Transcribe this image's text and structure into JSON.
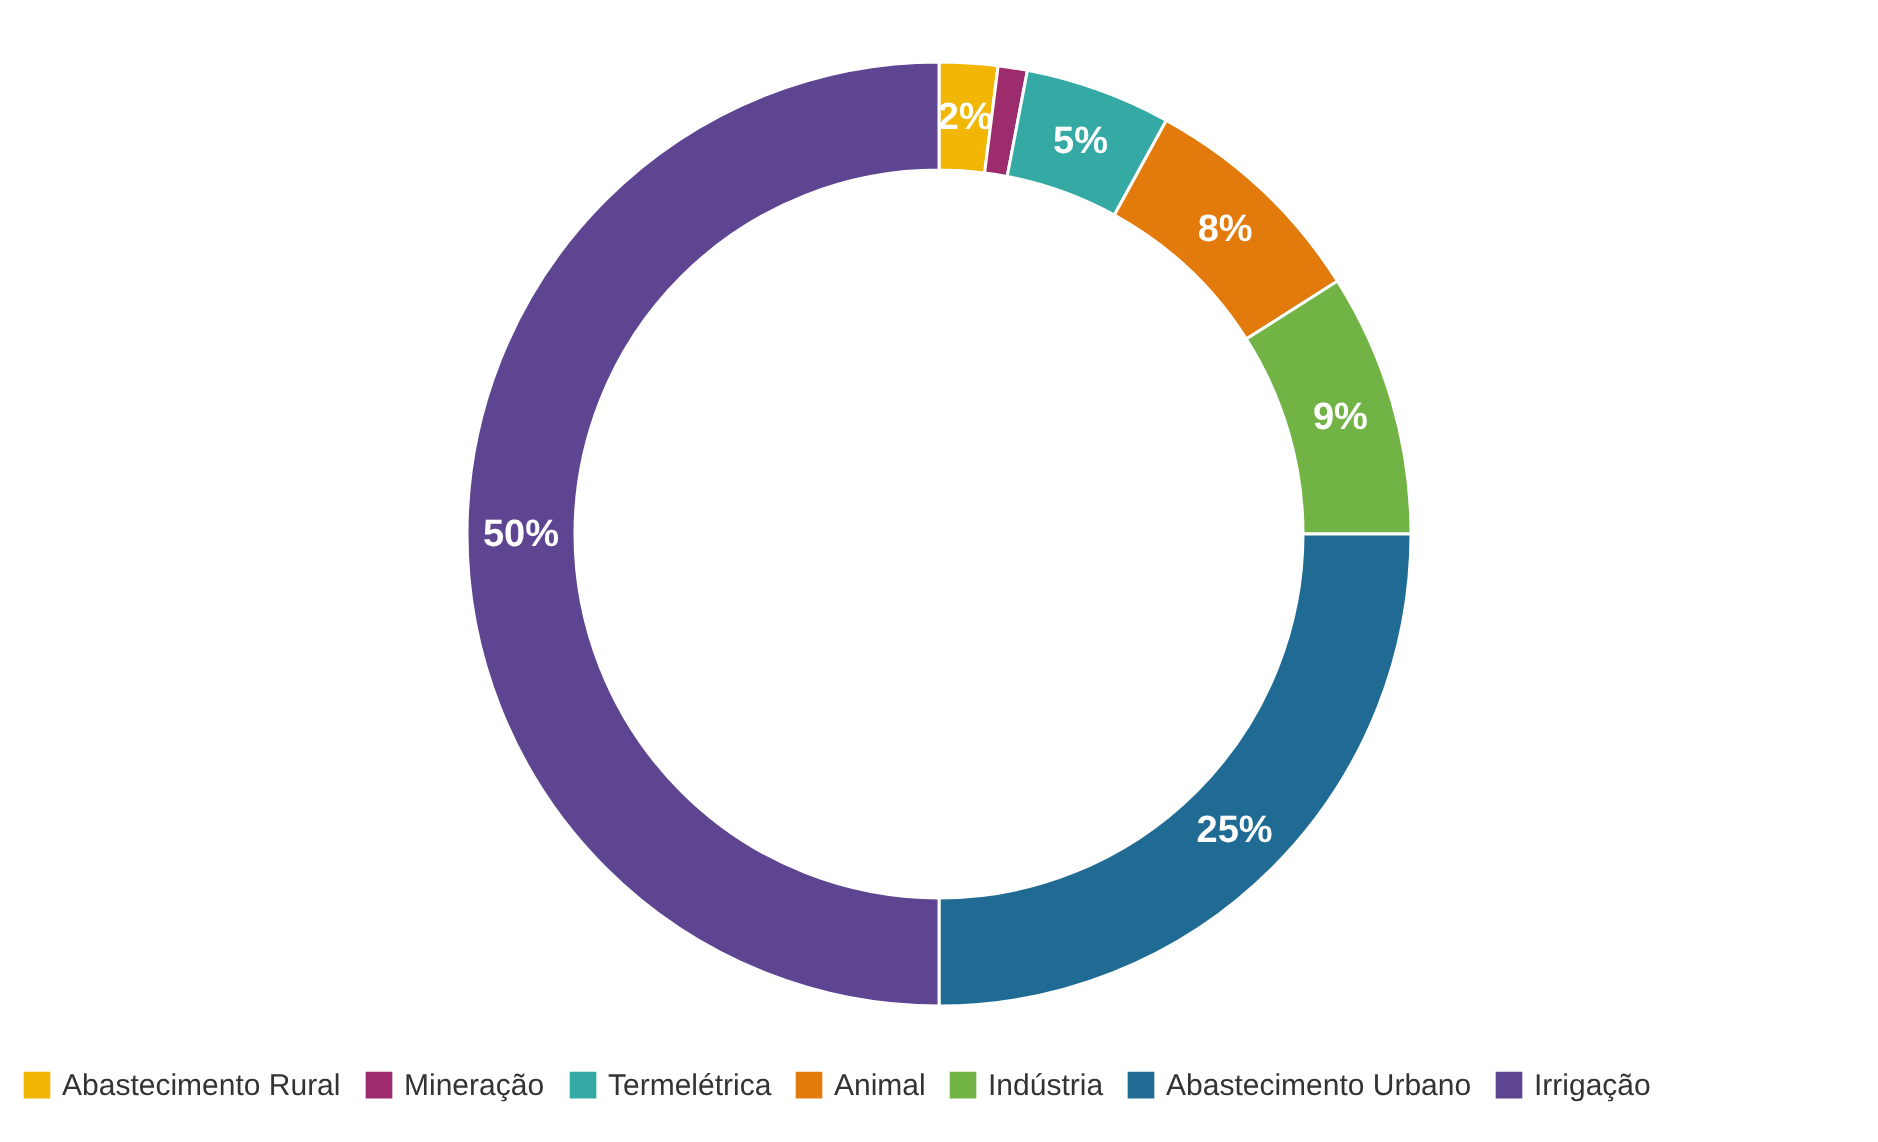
{
  "chart_data": {
    "type": "donut",
    "categories": [
      "Abastecimento Rural",
      "Mineração",
      "Termelétrica",
      "Animal",
      "Indústria",
      "Abastecimento Urbano",
      "Irrigação"
    ],
    "values": [
      2,
      1,
      5,
      8,
      9,
      25,
      50
    ],
    "colors": [
      "#f2b705",
      "#9c2c6b",
      "#35aaa5",
      "#e27b0c",
      "#71b345",
      "#1f6b94",
      "#5e4592"
    ],
    "value_labels": [
      "2%",
      null,
      "5%",
      "8%",
      "9%",
      "25%",
      "50%"
    ],
    "legend": "bottom"
  }
}
